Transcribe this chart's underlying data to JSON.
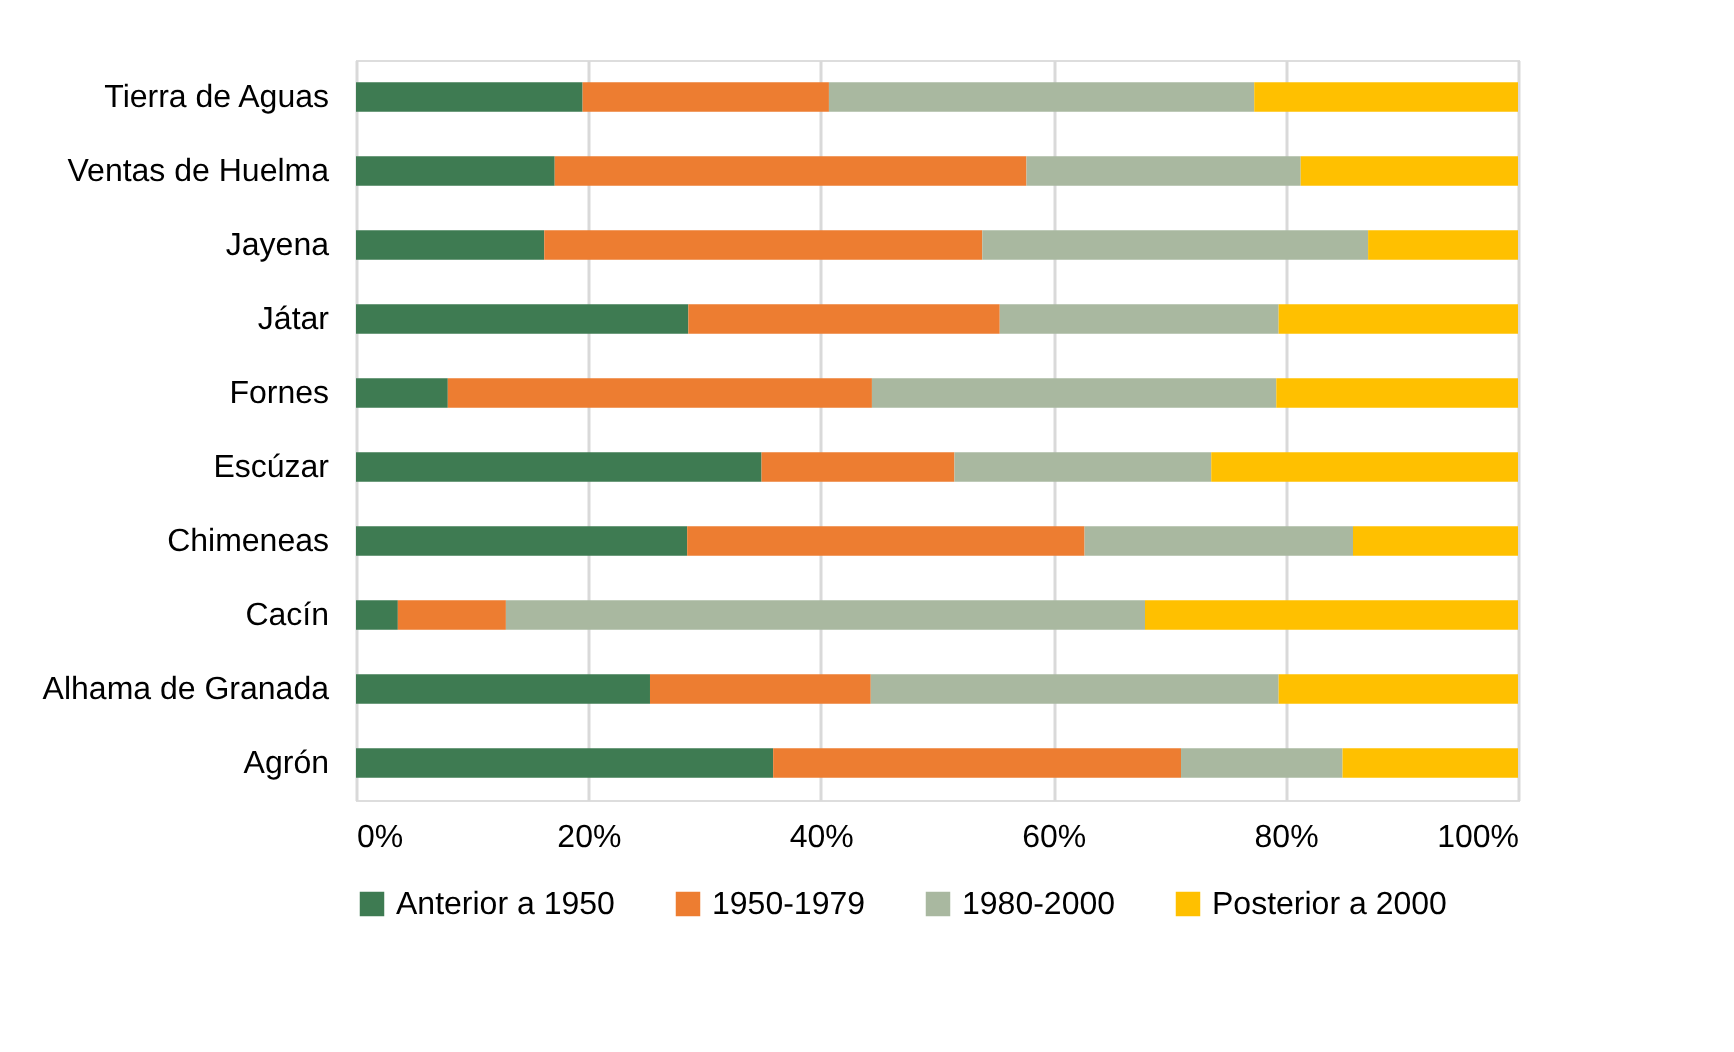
{
  "chart_data": {
    "type": "bar",
    "orientation": "horizontal",
    "stacked": true,
    "categories": [
      "Tierra de Aguas",
      "Ventas de Huelma",
      "Jayena",
      "Játar",
      "Fornes",
      "Escúzar",
      "Chimeneas",
      "Cacín",
      "Alhama de Granada",
      "Agrón"
    ],
    "series": [
      {
        "name": "Anterior a 1950",
        "color": "#3e7b52",
        "values": [
          19.5,
          17.1,
          16.2,
          28.6,
          7.9,
          34.9,
          28.5,
          3.6,
          25.3,
          35.9
        ]
      },
      {
        "name": "1950-1979",
        "color": "#ed7d31",
        "values": [
          21.2,
          40.6,
          37.7,
          26.8,
          36.5,
          16.6,
          34.2,
          9.3,
          19.0,
          35.1
        ]
      },
      {
        "name": "1980-2000",
        "color": "#a9b8a0",
        "values": [
          36.6,
          23.6,
          33.2,
          24.0,
          34.8,
          22.1,
          23.1,
          55.0,
          35.1,
          13.9
        ]
      },
      {
        "name": "Posterior a 2000",
        "color": "#ffc000",
        "values": [
          22.7,
          18.7,
          12.9,
          20.6,
          20.8,
          26.4,
          14.2,
          32.1,
          20.6,
          15.1
        ]
      }
    ],
    "xlim": [
      0,
      100
    ],
    "xticks": [
      {
        "value": 0,
        "label": "0%"
      },
      {
        "value": 20,
        "label": "20%"
      },
      {
        "value": 40,
        "label": "40%"
      },
      {
        "value": 60,
        "label": "60%"
      },
      {
        "value": 80,
        "label": "80%"
      },
      {
        "value": 100,
        "label": "100%"
      }
    ],
    "grid": "x",
    "legend": "bottom"
  }
}
